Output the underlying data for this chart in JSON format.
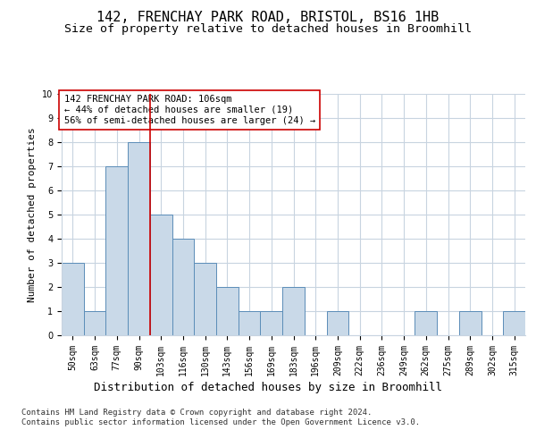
{
  "title": "142, FRENCHAY PARK ROAD, BRISTOL, BS16 1HB",
  "subtitle": "Size of property relative to detached houses in Broomhill",
  "xlabel": "Distribution of detached houses by size in Broomhill",
  "ylabel": "Number of detached properties",
  "categories": [
    "50sqm",
    "63sqm",
    "77sqm",
    "90sqm",
    "103sqm",
    "116sqm",
    "130sqm",
    "143sqm",
    "156sqm",
    "169sqm",
    "183sqm",
    "196sqm",
    "209sqm",
    "222sqm",
    "236sqm",
    "249sqm",
    "262sqm",
    "275sqm",
    "289sqm",
    "302sqm",
    "315sqm"
  ],
  "values": [
    3,
    1,
    7,
    8,
    5,
    4,
    3,
    2,
    1,
    1,
    2,
    0,
    1,
    0,
    0,
    0,
    1,
    0,
    1,
    0,
    1
  ],
  "bar_color": "#c9d9e8",
  "bar_edge_color": "#5b8db8",
  "reference_line_x": 3.5,
  "reference_line_color": "#cc0000",
  "annotation_text": "142 FRENCHAY PARK ROAD: 106sqm\n← 44% of detached houses are smaller (19)\n56% of semi-detached houses are larger (24) →",
  "annotation_box_color": "#ffffff",
  "annotation_box_edge_color": "#cc0000",
  "ylim": [
    0,
    10
  ],
  "yticks": [
    0,
    1,
    2,
    3,
    4,
    5,
    6,
    7,
    8,
    9,
    10
  ],
  "footer_text": "Contains HM Land Registry data © Crown copyright and database right 2024.\nContains public sector information licensed under the Open Government Licence v3.0.",
  "title_fontsize": 11,
  "subtitle_fontsize": 9.5,
  "xlabel_fontsize": 9,
  "ylabel_fontsize": 8,
  "tick_fontsize": 7,
  "annotation_fontsize": 7.5,
  "footer_fontsize": 6.5,
  "background_color": "#ffffff",
  "grid_color": "#c8d4e0"
}
